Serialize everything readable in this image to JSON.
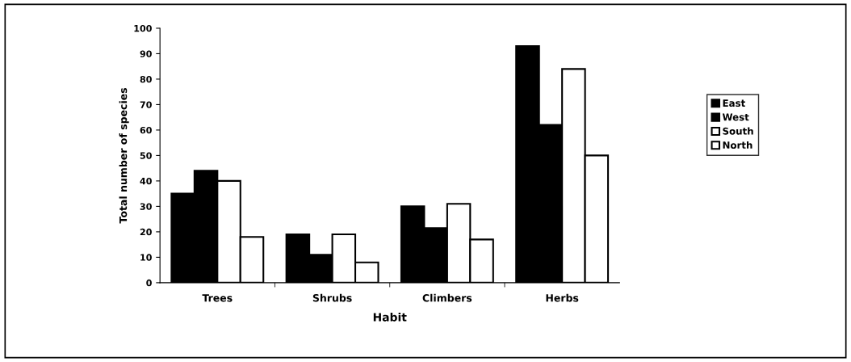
{
  "chart_data": {
    "type": "bar",
    "xlabel": "Habit",
    "ylabel": "Total number of species",
    "categories": [
      "Trees",
      "Shrubs",
      "Climbers",
      "Herbs"
    ],
    "series": [
      {
        "name": "East",
        "color": "#000000",
        "values": [
          35,
          19,
          30,
          93
        ]
      },
      {
        "name": "West",
        "color": "#000000",
        "values": [
          44,
          11,
          21.5,
          62
        ]
      },
      {
        "name": "South",
        "color": "#ffffff",
        "values": [
          40,
          19,
          31,
          84
        ]
      },
      {
        "name": "North",
        "color": "#ffffff",
        "values": [
          18,
          8,
          17,
          50
        ]
      }
    ],
    "ylim": [
      0,
      100
    ],
    "yticks": [
      0,
      10,
      20,
      30,
      40,
      50,
      60,
      70,
      80,
      90,
      100
    ],
    "grid": false,
    "legend": "right"
  }
}
